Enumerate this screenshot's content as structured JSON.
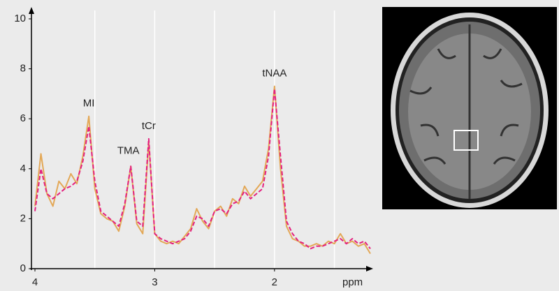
{
  "chart_data": {
    "type": "line",
    "x_label": "ppm",
    "x": [
      4.0,
      3.95,
      3.9,
      3.85,
      3.8,
      3.75,
      3.7,
      3.65,
      3.6,
      3.55,
      3.5,
      3.45,
      3.4,
      3.35,
      3.3,
      3.25,
      3.2,
      3.15,
      3.1,
      3.05,
      3.0,
      2.95,
      2.9,
      2.85,
      2.8,
      2.75,
      2.7,
      2.65,
      2.6,
      2.55,
      2.5,
      2.45,
      2.4,
      2.35,
      2.3,
      2.25,
      2.2,
      2.15,
      2.1,
      2.05,
      2.0,
      1.95,
      1.9,
      1.85,
      1.8,
      1.75,
      1.7,
      1.65,
      1.6,
      1.55,
      1.5,
      1.45,
      1.4,
      1.35,
      1.3,
      1.25,
      1.2
    ],
    "series": [
      {
        "color": "#e3a857",
        "dash": false,
        "values": [
          2.5,
          4.6,
          3.0,
          2.5,
          3.5,
          3.2,
          3.8,
          3.4,
          4.5,
          6.1,
          3.2,
          2.2,
          2.0,
          1.9,
          1.5,
          2.5,
          4.1,
          1.8,
          1.4,
          5.1,
          1.4,
          1.1,
          1.0,
          1.1,
          1.0,
          1.3,
          1.6,
          2.4,
          1.9,
          1.6,
          2.3,
          2.5,
          2.1,
          2.8,
          2.6,
          3.3,
          2.9,
          3.2,
          3.5,
          4.8,
          7.3,
          4.0,
          1.7,
          1.2,
          1.1,
          0.9,
          0.9,
          1.0,
          0.9,
          1.1,
          1.0,
          1.4,
          1.0,
          1.1,
          0.9,
          1.0,
          0.6
        ]
      },
      {
        "color": "#e4207f",
        "dash": true,
        "values": [
          2.3,
          4.0,
          3.0,
          2.8,
          3.0,
          3.2,
          3.3,
          3.5,
          4.3,
          5.7,
          3.5,
          2.3,
          2.1,
          1.9,
          1.7,
          2.6,
          4.1,
          1.9,
          1.7,
          5.2,
          1.4,
          1.2,
          1.1,
          1.0,
          1.1,
          1.2,
          1.5,
          2.1,
          2.0,
          1.7,
          2.3,
          2.4,
          2.2,
          2.6,
          2.7,
          3.1,
          2.8,
          3.0,
          3.2,
          4.5,
          7.2,
          4.5,
          1.9,
          1.4,
          1.1,
          1.0,
          0.8,
          0.9,
          0.9,
          1.0,
          1.1,
          1.2,
          1.0,
          1.2,
          1.0,
          1.1,
          0.8
        ]
      }
    ],
    "annotations": [
      {
        "text": "MI",
        "x": 3.55,
        "y": 6.1
      },
      {
        "text": "TMA",
        "x": 3.22,
        "y": 4.2
      },
      {
        "text": "tCr",
        "x": 3.05,
        "y": 5.2
      },
      {
        "text": "tNAA",
        "x": 2.0,
        "y": 7.3
      }
    ],
    "xlim": [
      4,
      1.2
    ],
    "xticks": [
      4,
      3,
      2
    ],
    "xgrid": [
      3.5,
      3,
      2.5,
      2,
      1.5
    ],
    "ylim": [
      0,
      10
    ],
    "yticks": [
      0,
      2,
      4,
      6,
      8,
      10
    ]
  }
}
